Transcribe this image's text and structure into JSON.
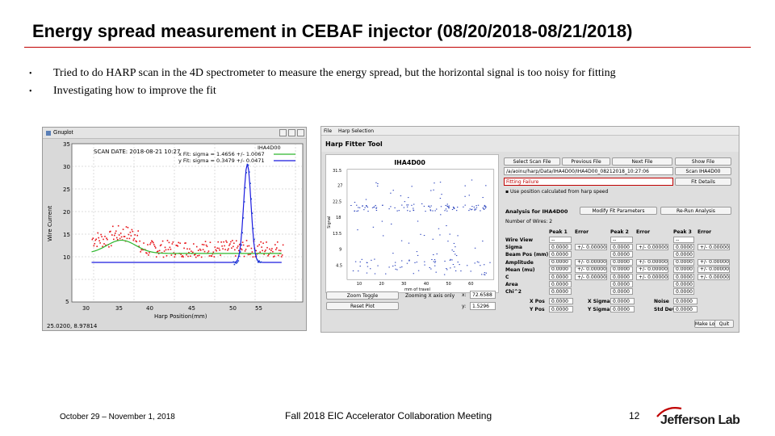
{
  "slide": {
    "title": "Energy spread measurement in CEBAF injector (08/20/2018-08/21/2018)",
    "bullets": [
      "Tried to do HARP scan in the 4D spectrometer to measure the energy spread, but the horizontal signal is too noisy for fitting",
      "Investigating how to improve the fit"
    ],
    "footer_left": "October 29 – November 1, 2018",
    "footer_center": "Fall 2018 EIC Accelerator Collaboration Meeting",
    "page_number": "12",
    "logo_text": "Jefferson Lab",
    "accent_color": "#c00000"
  },
  "gnuplot": {
    "window_title": "Gnuplot",
    "scan_date": "SCAN DATE: 2018-08-21    10:27",
    "legend_name": "IHA4D00",
    "fit_x": "x  Fit: sigma = 1.4656 +/- 1.0067",
    "fit_y": "y  Fit: sigma = 0.3479 +/- 0.0471",
    "ylabel": "Wire Current",
    "xlabel": "Harp Position(mm)",
    "cursor_readout": "25.0200,  8.97814",
    "x_ticks": [
      "30",
      "35",
      "40",
      "45",
      "50",
      "55"
    ],
    "y_ticks": [
      "35",
      "30",
      "25",
      "20",
      "15",
      "10",
      "5"
    ],
    "colors": {
      "x_data": "#e8151a",
      "y_data": "#1a3ccf",
      "x_fit": "#2fb82f",
      "y_fit": "#1a1adf"
    }
  },
  "harp": {
    "menu": [
      "File",
      "Harp Selection"
    ],
    "tool_title": "Harp Fitter Tool",
    "graph_title": "IHA4D00",
    "graph_xlabel": "mm of travel",
    "graph_ylabel": "Signal",
    "graph_y_ticks": [
      "31.5",
      "27",
      "22.5",
      "18",
      "13.5",
      "9",
      "4.5"
    ],
    "graph_x_ticks": [
      "10",
      "20",
      "30",
      "40",
      "50",
      "60"
    ],
    "buttons": {
      "select_scan": "Select Scan File",
      "previous": "Previous File",
      "next": "Next File",
      "show": "Show File",
      "scan_iha": "Scan IHA4D00",
      "fit_details": "Fit Details",
      "zoom_toggle": "Zoom Toggle",
      "reset": "Reset Plot",
      "modify": "Modify Fit Parameters",
      "rerun": "Re-Run Analysis",
      "make_log": "Make Log Entry",
      "quit": "Quit"
    },
    "file_path": "/a/aoinu/harp/Data/IHA4D00/IHA4D00_08212018_10:27:06",
    "fit_status": "Fitting Failure",
    "option_text": "Use position calculated from harp speed",
    "zoom_status": "Zooming X axis only",
    "readout_x_label": "x:",
    "readout_x_value": "72.6588",
    "readout_y_label": "y:",
    "readout_y_value": "1.5296",
    "analysis_title": "Analysis for IHA4D00",
    "num_wires": "Number of Wires: 2",
    "col_headers": [
      "Peak 1",
      "Error",
      "Peak 2",
      "Error",
      "Peak 3",
      "Error"
    ],
    "rows": [
      {
        "label": "Wire View",
        "values": [
          "--",
          "",
          "--",
          "",
          "--",
          ""
        ]
      },
      {
        "label": "Sigma",
        "values": [
          "0.0000",
          "+/- 0.00000",
          "0.0000",
          "+/- 0.00000",
          "0.0000",
          "+/- 0.00000"
        ]
      },
      {
        "label": "Beam Pos (mm)",
        "values": [
          "0.0000",
          "",
          "0.0000",
          "",
          "0.0000",
          ""
        ]
      },
      {
        "label": "Amplitude",
        "values": [
          "0.0000",
          "+/- 0.00000",
          "0.0000",
          "+/- 0.00000",
          "0.0000",
          "+/- 0.00000"
        ]
      },
      {
        "label": "Mean (mu)",
        "values": [
          "0.0000",
          "+/- 0.00000",
          "0.0000",
          "+/- 0.00000",
          "0.0000",
          "+/- 0.00000"
        ]
      },
      {
        "label": "C",
        "values": [
          "0.0000",
          "+/- 0.00000",
          "0.0000",
          "+/- 0.00000",
          "0.0000",
          "+/- 0.00000"
        ]
      },
      {
        "label": "Area",
        "values": [
          "0.0000",
          "",
          "0.0000",
          "",
          "0.0000",
          ""
        ]
      },
      {
        "label": "Chi^2",
        "values": [
          "0.0000",
          "",
          "0.0000",
          "",
          "0.0000",
          ""
        ]
      }
    ],
    "bottom_rows": [
      {
        "label": "X Pos",
        "value": "0.0000",
        "label2": "X Sigma",
        "value2": "0.0000",
        "label3": "Noise",
        "value3": "0.0000"
      },
      {
        "label": "Y Pos",
        "value": "0.0000",
        "label2": "Y Sigma",
        "value2": "0.0000",
        "label3": "Std Dev",
        "value3": "0.0000"
      }
    ]
  }
}
